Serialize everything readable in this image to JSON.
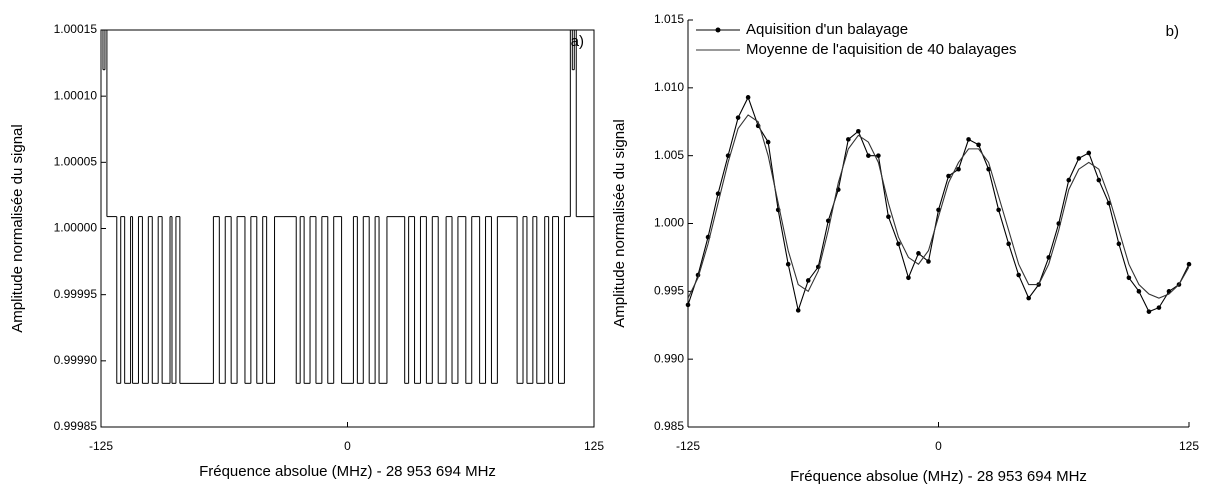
{
  "chart_data": [
    {
      "type": "line",
      "drawstyle": "steps-post",
      "annotation": "a)",
      "xlabel": "Fréquence absolue (MHz) - 28 953 694 MHz",
      "ylabel": "Amplitude normalisée du signal",
      "color": "#000000",
      "x": [
        -125,
        -124,
        -123,
        -122,
        -117,
        -115,
        -113,
        -110,
        -109,
        -106,
        -104,
        -101,
        -99,
        -96,
        -94,
        -90,
        -89,
        -87,
        -85,
        -68,
        -65,
        -62,
        -59,
        -56,
        -52,
        -49,
        -46,
        -43,
        -41,
        -37,
        -26,
        -24,
        -22,
        -19,
        -16,
        -13,
        -10,
        -7,
        -3,
        3,
        5,
        8,
        11,
        14,
        16,
        20,
        29,
        31,
        34,
        37,
        40,
        43,
        46,
        50,
        53,
        56,
        60,
        63,
        67,
        70,
        73,
        76,
        86,
        89,
        91,
        94,
        96,
        100,
        102,
        104,
        107,
        110,
        113,
        114,
        115,
        116,
        125
      ],
      "values": [
        1.00015,
        1.00012,
        1.00015,
        1.000009,
        0.999883,
        1.000009,
        0.999883,
        1.000009,
        0.999883,
        1.000009,
        0.999883,
        1.000009,
        0.999883,
        1.000009,
        0.999883,
        1.000009,
        0.999883,
        1.000009,
        0.999883,
        1.000009,
        0.999883,
        1.000009,
        0.999883,
        1.000009,
        0.999883,
        1.000009,
        0.999883,
        1.000009,
        0.999883,
        1.000009,
        0.999883,
        1.000009,
        0.999883,
        1.000009,
        0.999883,
        1.000009,
        0.999883,
        1.000009,
        0.999883,
        1.000009,
        0.999883,
        1.000009,
        0.999883,
        1.000009,
        0.999883,
        1.000009,
        0.999883,
        1.000009,
        0.999883,
        1.000009,
        0.999883,
        1.000009,
        0.999883,
        1.000009,
        0.999883,
        1.000009,
        0.999883,
        1.000009,
        0.999883,
        1.000009,
        0.999883,
        1.000009,
        0.999883,
        1.000009,
        0.999883,
        1.000009,
        0.999883,
        1.000009,
        0.999883,
        1.000009,
        0.999883,
        1.000009,
        1.00015,
        1.00012,
        1.00015,
        1.000009,
        1.000009
      ],
      "xlim": [
        -125,
        125
      ],
      "xticks": [
        -125,
        0,
        125
      ],
      "ylim": [
        0.99985,
        1.00015
      ],
      "yticks": [
        {
          "value": 0.99985,
          "label": "0.99985"
        },
        {
          "value": 0.9999,
          "label": "0.99990"
        },
        {
          "value": 0.99995,
          "label": "0.99995"
        },
        {
          "value": 1,
          "label": "1.00000"
        },
        {
          "value": 1.00005,
          "label": "1.00005"
        },
        {
          "value": 1.0001,
          "label": "1.00010"
        },
        {
          "value": 1.00015,
          "label": "1.00015"
        }
      ]
    },
    {
      "type": "line",
      "annotation": "b)",
      "legend": "upper left",
      "xlabel": "Fréquence absolue (MHz) - 28 953 694 MHz",
      "ylabel": "Amplitude normalisée du signal",
      "x": [
        -125,
        -120,
        -115,
        -110,
        -105,
        -100,
        -95,
        -90,
        -85,
        -80,
        -75,
        -70,
        -65,
        -60,
        -55,
        -50,
        -45,
        -40,
        -35,
        -30,
        -25,
        -20,
        -15,
        -10,
        -5,
        0,
        5,
        10,
        15,
        20,
        25,
        30,
        35,
        40,
        45,
        50,
        55,
        60,
        65,
        70,
        75,
        80,
        85,
        90,
        95,
        100,
        105,
        110,
        115,
        120,
        125
      ],
      "series": [
        {
          "name": "Aquisition d'un balayage",
          "color": "#000000",
          "marker": "circle",
          "values": [
            0.994,
            0.9962,
            0.999,
            1.0022,
            1.005,
            1.0078,
            1.0093,
            1.0072,
            1.006,
            1.001,
            0.997,
            0.9936,
            0.9958,
            0.9968,
            1.0002,
            1.0025,
            1.0062,
            1.0068,
            1.005,
            1.005,
            1.0005,
            0.9985,
            0.996,
            0.9978,
            0.9972,
            1.001,
            1.0035,
            1.004,
            1.0062,
            1.0058,
            1.004,
            1.001,
            0.9985,
            0.9962,
            0.9945,
            0.9955,
            0.9975,
            1.0,
            1.0032,
            1.0048,
            1.0052,
            1.0032,
            1.0015,
            0.9985,
            0.996,
            0.995,
            0.9935,
            0.9938,
            0.995,
            0.9955,
            0.997
          ]
        },
        {
          "name": "Moyenne de l'aquisition de 40 balayages",
          "color": "#333333",
          "values": [
            0.9945,
            0.996,
            0.9985,
            1.0015,
            1.0045,
            1.007,
            1.008,
            1.0075,
            1.005,
            1.0015,
            0.998,
            0.9955,
            0.995,
            0.9965,
            0.9995,
            1.003,
            1.0055,
            1.0065,
            1.006,
            1.0045,
            1.0015,
            0.999,
            0.9975,
            0.997,
            0.998,
            1.0005,
            1.003,
            1.0045,
            1.0055,
            1.0055,
            1.0045,
            1.002,
            0.9995,
            0.997,
            0.9955,
            0.9955,
            0.997,
            0.9995,
            1.0025,
            1.004,
            1.0045,
            1.004,
            1.002,
            0.9995,
            0.997,
            0.9955,
            0.9948,
            0.9945,
            0.9948,
            0.9955,
            0.9968
          ]
        }
      ],
      "xlim": [
        -125,
        125
      ],
      "xticks": [
        -125,
        0,
        125
      ],
      "ylim": [
        0.985,
        1.015
      ],
      "yticks": [
        0.985,
        {
          "value": 0.99,
          "label": "0.990"
        },
        0.995,
        {
          "value": 1,
          "label": "1.000"
        },
        1.005,
        {
          "value": 1.01,
          "label": "1.010"
        },
        1.015
      ]
    }
  ]
}
